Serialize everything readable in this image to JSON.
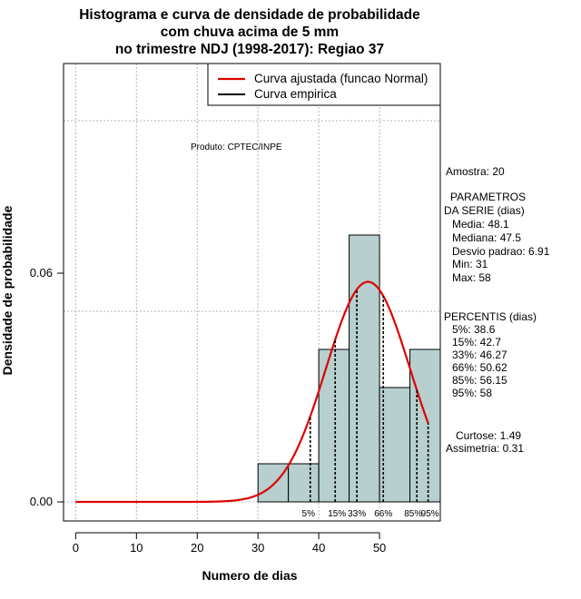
{
  "chart_data": {
    "type": "bar",
    "title_lines": [
      "Histograma e curva de densidade de probabilidade",
      "com chuva acima de 5 mm",
      "no trimestre NDJ (1998-2017): Regiao 37"
    ],
    "xlabel": "Numero de dias",
    "ylabel": "Densidade de probabilidade",
    "xlim": [
      -2,
      60
    ],
    "ylim": [
      -0.005,
      0.115
    ],
    "x_ticks": [
      0,
      10,
      20,
      30,
      40,
      50
    ],
    "x_tick_labels": [
      "0",
      "10",
      "20",
      "30",
      "40",
      "50"
    ],
    "y_ticks": [
      0.0,
      0.06
    ],
    "y_tick_labels": [
      "0.00",
      "0.06"
    ],
    "grid_x": [
      0,
      10,
      20,
      30,
      40,
      50
    ],
    "grid_y": [
      0.0,
      0.05,
      0.1
    ],
    "bin_edges": [
      30,
      35,
      40,
      45,
      50,
      55,
      60
    ],
    "bin_densities": [
      0.01,
      0.01,
      0.04,
      0.07,
      0.03,
      0.04
    ],
    "normal_fit": {
      "mean": 48.1,
      "sd": 6.91,
      "x_range": [
        0,
        58
      ]
    },
    "percentile_markers": [
      {
        "label": "5%",
        "value": 38.6
      },
      {
        "label": "15%",
        "value": 42.7
      },
      {
        "label": "33%",
        "value": 46.27
      },
      {
        "label": "66%",
        "value": 50.62
      },
      {
        "label": "85%",
        "value": 56.15
      },
      {
        "label": "95%",
        "value": 58
      }
    ],
    "legend": [
      {
        "label": "Curva ajustada (funcao Normal)",
        "color": "#e00000"
      },
      {
        "label": "Curva empirica",
        "color": "#000000"
      }
    ],
    "product_label": "Produto: CPTEC/INPE",
    "stats_lines": [
      "Amostra: 20",
      "PARAMETROS",
      "DA SERIE (dias)",
      "Media: 48.1",
      "Mediana: 47.5",
      "Desvio padrao: 6.91",
      "Min: 31",
      "Max: 58",
      "PERCENTIS (dias)",
      "5%: 38.6",
      "15%: 42.7",
      "33%: 46.27",
      "66%: 50.62",
      "85%: 56.15",
      "95%: 58",
      "Curtose: 1.49",
      "Assimetria: 0.31"
    ],
    "colors": {
      "bar_fill": "#b7cfcf",
      "curve": "#e00000",
      "grid": "#b4b4b4"
    }
  }
}
